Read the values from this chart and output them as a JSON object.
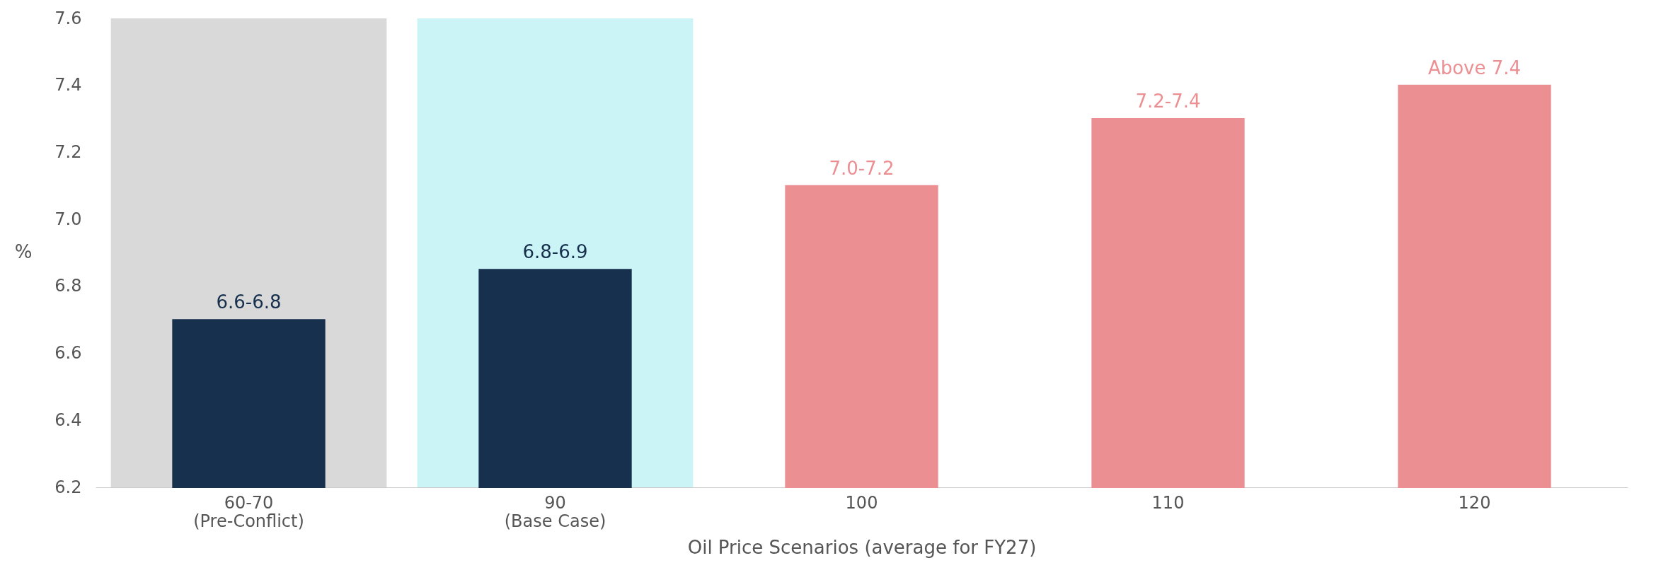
{
  "chart_data": {
    "type": "bar",
    "xlabel": "Oil Price Scenarios (average for FY27)",
    "ylabel": "%",
    "categories": [
      "60-70\n(Pre-Conflict)",
      "90\n(Base Case)",
      "100",
      "110",
      "120"
    ],
    "values": [
      6.7,
      6.85,
      7.1,
      7.3,
      7.4
    ],
    "value_labels": [
      "6.6-6.8",
      "6.8-6.9",
      "7.0-7.2",
      "7.2-7.4",
      "Above 7.4"
    ],
    "colors": [
      "#17304d",
      "#17304d",
      "#eb8f93",
      "#eb8f93",
      "#eb8f93"
    ],
    "ylim": [
      6.2,
      7.6
    ],
    "yticks": [
      6.2,
      6.4,
      6.6,
      6.8,
      {
        "value": 7,
        "label": "7.0"
      },
      7.2,
      7.4,
      7.6
    ],
    "bands": [
      {
        "axis": "x",
        "from": "60-70\n(Pre-Conflict)",
        "to": "60-70\n(Pre-Conflict)",
        "color": "#d9d9d9"
      },
      {
        "axis": "x",
        "from": "90\n(Base Case)",
        "to": "90\n(Base Case)",
        "color": "#caf4f5"
      }
    ]
  }
}
